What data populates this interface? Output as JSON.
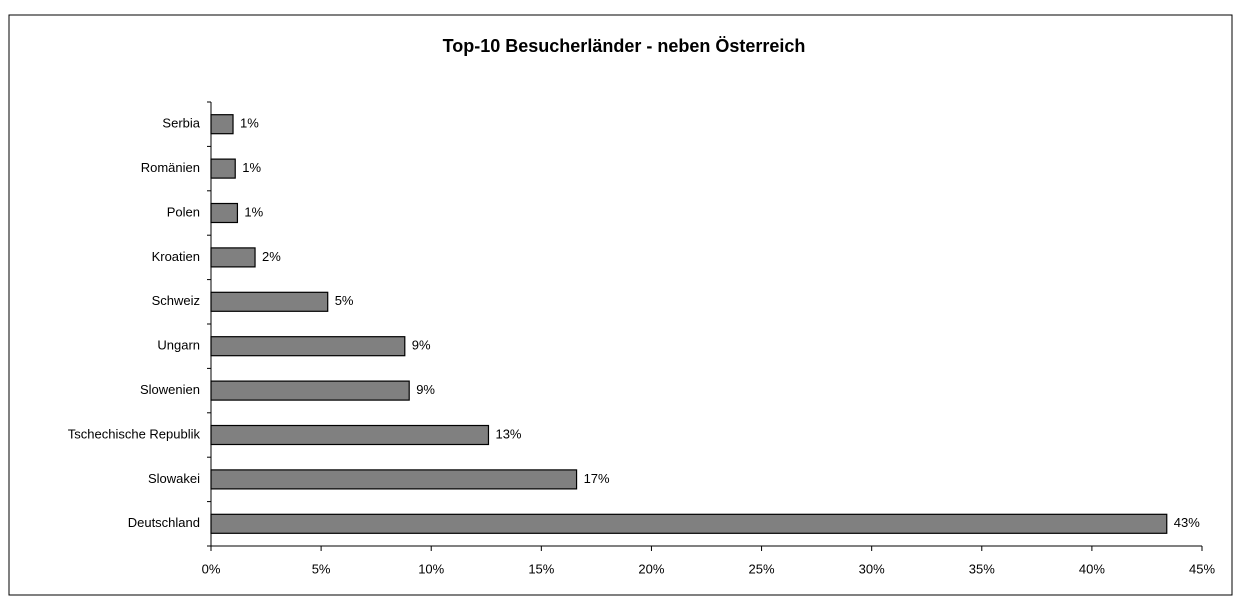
{
  "chart_data": {
    "type": "barh",
    "title": "Top-10 Besucherländer - neben Österreich",
    "categories": [
      "Serbia",
      "Romänien",
      "Polen",
      "Kroatien",
      "Schweiz",
      "Ungarn",
      "Slowenien",
      "Tschechische Republik",
      "Slowakei",
      "Deutschland"
    ],
    "values": [
      1.0,
      1.1,
      1.2,
      2.0,
      5.3,
      8.8,
      9.0,
      12.6,
      16.6,
      43.4
    ],
    "value_labels": [
      "1%",
      "1%",
      "1%",
      "2%",
      "5%",
      "9%",
      "9%",
      "13%",
      "17%",
      "43%"
    ],
    "color": "#808080",
    "xlim": [
      0,
      45
    ],
    "xticks": [
      {
        "value": 0,
        "label": "0%"
      },
      {
        "value": 5,
        "label": "5%"
      },
      {
        "value": 10,
        "label": "10%"
      },
      {
        "value": 15,
        "label": "15%"
      },
      {
        "value": 20,
        "label": "20%"
      },
      {
        "value": 25,
        "label": "25%"
      },
      {
        "value": 30,
        "label": "30%"
      },
      {
        "value": 35,
        "label": "35%"
      },
      {
        "value": 40,
        "label": "40%"
      },
      {
        "value": 45,
        "label": "45%"
      }
    ]
  }
}
